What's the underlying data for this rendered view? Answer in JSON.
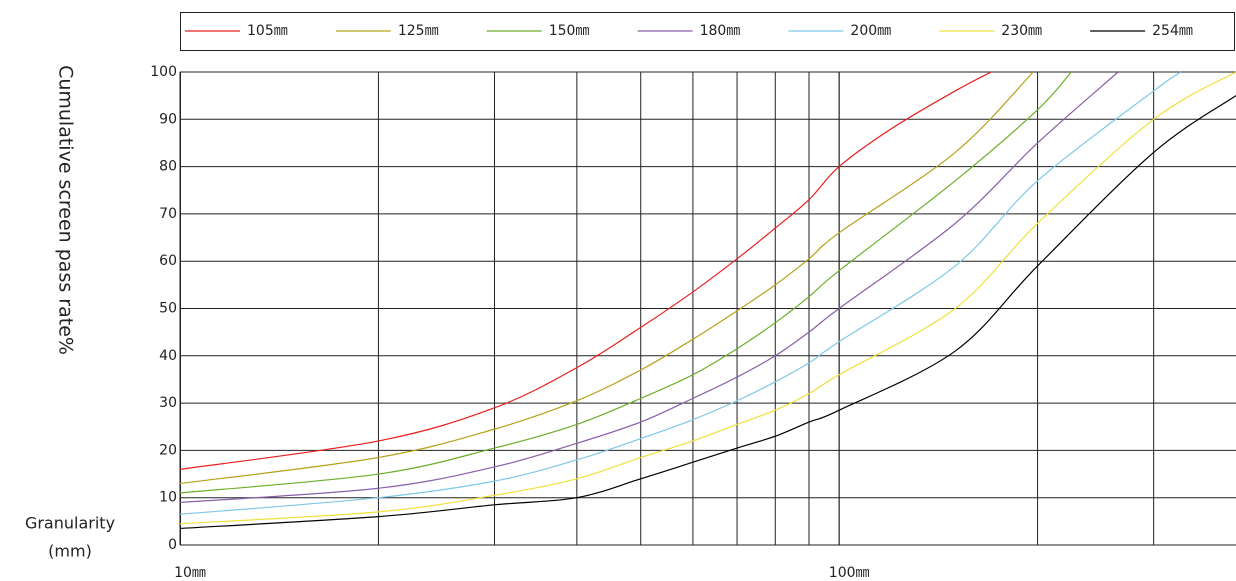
{
  "chart_data": {
    "type": "line",
    "ylabel": "Cumulative screen pass rate%",
    "xlabel": [
      "Granularity",
      "(mm)"
    ],
    "xscale": "log",
    "xlim": [
      10,
      400
    ],
    "xticks": [
      {
        "value": 10,
        "label": "10㎜"
      },
      {
        "value": 100,
        "label": "100㎜"
      }
    ],
    "xgrid": [
      20,
      30,
      40,
      50,
      60,
      70,
      80,
      90,
      100,
      200,
      300
    ],
    "ylim": [
      0,
      100
    ],
    "yticks": [
      0,
      10,
      20,
      30,
      40,
      50,
      60,
      70,
      80,
      90,
      100
    ],
    "grid": true,
    "legend": "top",
    "series": [
      {
        "name": "105㎜",
        "color": "#e8201e",
        "x": [
          10,
          20,
          30,
          40,
          50,
          60,
          70,
          80,
          90,
          100,
          120,
          150,
          170
        ],
        "values": [
          16,
          22,
          29,
          37.5,
          46,
          53.5,
          60.5,
          67,
          73,
          80,
          88,
          96,
          100
        ]
      },
      {
        "name": "125㎜",
        "color": "#b5a21a",
        "x": [
          10,
          20,
          30,
          40,
          50,
          60,
          70,
          80,
          90,
          100,
          150,
          197
        ],
        "values": [
          13,
          18.5,
          24.5,
          30.5,
          37,
          43.5,
          49.5,
          55,
          60.5,
          66,
          83,
          100
        ]
      },
      {
        "name": "150㎜",
        "color": "#6cae2a",
        "x": [
          10,
          20,
          30,
          40,
          50,
          60,
          70,
          80,
          90,
          100,
          150,
          200,
          225
        ],
        "values": [
          11,
          15,
          20.5,
          25.5,
          31,
          36,
          41.5,
          47,
          52.5,
          58,
          77,
          92,
          100
        ]
      },
      {
        "name": "180㎜",
        "color": "#8a5ea8",
        "x": [
          10,
          20,
          30,
          40,
          50,
          60,
          70,
          80,
          90,
          100,
          150,
          200,
          265
        ],
        "values": [
          9,
          12,
          16.5,
          21.5,
          26,
          31,
          35.5,
          40,
          45,
          50,
          68,
          85,
          100
        ]
      },
      {
        "name": "200㎜",
        "color": "#7ec8e8",
        "x": [
          10,
          20,
          30,
          40,
          50,
          60,
          70,
          80,
          90,
          100,
          150,
          200,
          300,
          330
        ],
        "values": [
          6.5,
          10,
          13.5,
          18,
          22.5,
          26.5,
          30.5,
          34.5,
          38.5,
          43,
          59,
          77,
          96,
          100
        ]
      },
      {
        "name": "230㎜",
        "color": "#f0e03a",
        "x": [
          10,
          20,
          30,
          40,
          50,
          60,
          70,
          80,
          90,
          100,
          150,
          200,
          300,
          400
        ],
        "values": [
          4.5,
          7,
          10.5,
          14,
          18.5,
          22,
          25.5,
          28.5,
          32,
          36,
          50,
          68,
          90,
          100
        ]
      },
      {
        "name": "254㎜",
        "color": "#000000",
        "x": [
          10,
          20,
          30,
          40,
          50,
          60,
          70,
          80,
          90,
          100,
          150,
          200,
          300,
          400
        ],
        "values": [
          3.5,
          6,
          8.5,
          10,
          14,
          17.5,
          20.5,
          23,
          26,
          28.5,
          41,
          59,
          83,
          95
        ]
      }
    ]
  }
}
